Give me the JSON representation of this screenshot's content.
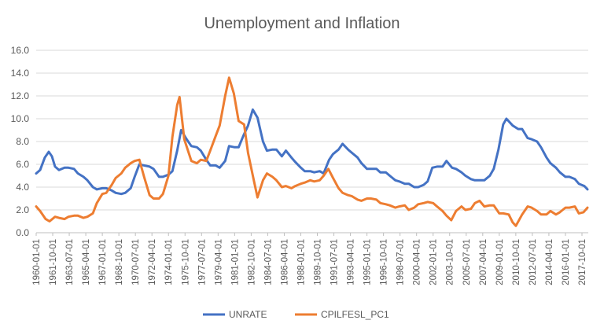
{
  "chart_data": {
    "type": "line",
    "title": "Unemployment and Inflation",
    "xlabel": "",
    "ylabel": "",
    "ylim": [
      0,
      16
    ],
    "yticks": [
      "0.0",
      "2.0",
      "4.0",
      "6.0",
      "8.0",
      "10.0",
      "12.0",
      "14.0",
      "16.0"
    ],
    "xticks": [
      "1960-01-01",
      "1961-10-01",
      "1963-07-01",
      "1965-04-01",
      "1967-01-01",
      "1968-10-01",
      "1970-07-01",
      "1972-04-01",
      "1974-01-01",
      "1975-10-01",
      "1977-07-01",
      "1979-04-01",
      "1981-01-01",
      "1982-10-01",
      "1984-07-01",
      "1986-04-01",
      "1988-01-01",
      "1989-10-01",
      "1991-07-01",
      "1993-04-01",
      "1995-01-01",
      "1996-10-01",
      "1998-07-01",
      "2000-04-01",
      "2002-01-01",
      "2003-10-01",
      "2005-07-01",
      "2007-04-01",
      "2009-01-01",
      "2010-10-01",
      "2012-07-01",
      "2014-04-01",
      "2016-01-01",
      "2017-10-01"
    ],
    "x_range": [
      "1960-01-01",
      "2018-06-01"
    ],
    "grid": true,
    "legend_position": "bottom",
    "series": [
      {
        "name": "UNRATE",
        "color": "#4472c4",
        "points": [
          [
            "1960-01",
            5.2
          ],
          [
            "1960-06",
            5.5
          ],
          [
            "1960-12",
            6.6
          ],
          [
            "1961-05",
            7.1
          ],
          [
            "1961-09",
            6.7
          ],
          [
            "1962-01",
            5.8
          ],
          [
            "1962-06",
            5.5
          ],
          [
            "1963-01",
            5.7
          ],
          [
            "1963-06",
            5.7
          ],
          [
            "1964-01",
            5.6
          ],
          [
            "1964-06",
            5.2
          ],
          [
            "1965-01",
            4.9
          ],
          [
            "1965-06",
            4.6
          ],
          [
            "1966-01",
            4.0
          ],
          [
            "1966-06",
            3.8
          ],
          [
            "1967-01",
            3.9
          ],
          [
            "1967-06",
            3.9
          ],
          [
            "1968-01",
            3.7
          ],
          [
            "1968-06",
            3.5
          ],
          [
            "1969-01",
            3.4
          ],
          [
            "1969-06",
            3.5
          ],
          [
            "1970-01",
            3.9
          ],
          [
            "1970-06",
            4.9
          ],
          [
            "1970-12",
            6.0
          ],
          [
            "1971-06",
            5.9
          ],
          [
            "1972-01",
            5.8
          ],
          [
            "1972-06",
            5.6
          ],
          [
            "1973-01",
            4.9
          ],
          [
            "1973-06",
            4.9
          ],
          [
            "1974-01",
            5.1
          ],
          [
            "1974-06",
            5.4
          ],
          [
            "1974-12",
            7.2
          ],
          [
            "1975-05",
            9.0
          ],
          [
            "1975-12",
            8.2
          ],
          [
            "1976-06",
            7.6
          ],
          [
            "1977-01",
            7.5
          ],
          [
            "1977-06",
            7.2
          ],
          [
            "1978-01",
            6.4
          ],
          [
            "1978-06",
            5.9
          ],
          [
            "1979-01",
            5.9
          ],
          [
            "1979-06",
            5.7
          ],
          [
            "1980-01",
            6.3
          ],
          [
            "1980-06",
            7.6
          ],
          [
            "1981-01",
            7.5
          ],
          [
            "1981-06",
            7.5
          ],
          [
            "1981-12",
            8.5
          ],
          [
            "1982-06",
            9.4
          ],
          [
            "1982-12",
            10.8
          ],
          [
            "1983-06",
            10.1
          ],
          [
            "1984-01",
            8.0
          ],
          [
            "1984-06",
            7.2
          ],
          [
            "1985-01",
            7.3
          ],
          [
            "1985-06",
            7.3
          ],
          [
            "1986-01",
            6.7
          ],
          [
            "1986-06",
            7.2
          ],
          [
            "1987-01",
            6.6
          ],
          [
            "1987-06",
            6.2
          ],
          [
            "1988-01",
            5.7
          ],
          [
            "1988-06",
            5.4
          ],
          [
            "1989-01",
            5.4
          ],
          [
            "1989-06",
            5.3
          ],
          [
            "1990-01",
            5.4
          ],
          [
            "1990-06",
            5.2
          ],
          [
            "1991-01",
            6.4
          ],
          [
            "1991-06",
            6.9
          ],
          [
            "1992-01",
            7.3
          ],
          [
            "1992-06",
            7.8
          ],
          [
            "1993-01",
            7.3
          ],
          [
            "1993-06",
            7.0
          ],
          [
            "1994-01",
            6.6
          ],
          [
            "1994-06",
            6.1
          ],
          [
            "1995-01",
            5.6
          ],
          [
            "1995-06",
            5.6
          ],
          [
            "1996-01",
            5.6
          ],
          [
            "1996-06",
            5.3
          ],
          [
            "1997-01",
            5.3
          ],
          [
            "1997-06",
            5.0
          ],
          [
            "1998-01",
            4.6
          ],
          [
            "1998-06",
            4.5
          ],
          [
            "1999-01",
            4.3
          ],
          [
            "1999-06",
            4.3
          ],
          [
            "2000-01",
            4.0
          ],
          [
            "2000-06",
            4.0
          ],
          [
            "2001-01",
            4.2
          ],
          [
            "2001-06",
            4.5
          ],
          [
            "2001-12",
            5.7
          ],
          [
            "2002-06",
            5.8
          ],
          [
            "2003-01",
            5.8
          ],
          [
            "2003-06",
            6.3
          ],
          [
            "2004-01",
            5.7
          ],
          [
            "2004-06",
            5.6
          ],
          [
            "2005-01",
            5.3
          ],
          [
            "2005-06",
            5.0
          ],
          [
            "2006-01",
            4.7
          ],
          [
            "2006-06",
            4.6
          ],
          [
            "2007-01",
            4.6
          ],
          [
            "2007-06",
            4.6
          ],
          [
            "2008-01",
            5.0
          ],
          [
            "2008-06",
            5.6
          ],
          [
            "2008-12",
            7.3
          ],
          [
            "2009-06",
            9.5
          ],
          [
            "2009-10",
            10.0
          ],
          [
            "2010-06",
            9.4
          ],
          [
            "2011-01",
            9.1
          ],
          [
            "2011-06",
            9.1
          ],
          [
            "2012-01",
            8.3
          ],
          [
            "2012-06",
            8.2
          ],
          [
            "2013-01",
            8.0
          ],
          [
            "2013-06",
            7.5
          ],
          [
            "2014-01",
            6.6
          ],
          [
            "2014-06",
            6.1
          ],
          [
            "2015-01",
            5.7
          ],
          [
            "2015-06",
            5.3
          ],
          [
            "2016-01",
            4.9
          ],
          [
            "2016-06",
            4.9
          ],
          [
            "2017-01",
            4.7
          ],
          [
            "2017-06",
            4.3
          ],
          [
            "2018-01",
            4.1
          ],
          [
            "2018-05",
            3.8
          ]
        ]
      },
      {
        "name": "CPILFESL_PC1",
        "color": "#ed7d31",
        "points": [
          [
            "1960-01",
            2.3
          ],
          [
            "1960-06",
            1.9
          ],
          [
            "1961-01",
            1.2
          ],
          [
            "1961-06",
            1.0
          ],
          [
            "1962-01",
            1.4
          ],
          [
            "1962-06",
            1.3
          ],
          [
            "1963-01",
            1.2
          ],
          [
            "1963-06",
            1.4
          ],
          [
            "1964-01",
            1.5
          ],
          [
            "1964-06",
            1.5
          ],
          [
            "1965-01",
            1.3
          ],
          [
            "1965-06",
            1.4
          ],
          [
            "1966-01",
            1.7
          ],
          [
            "1966-06",
            2.6
          ],
          [
            "1967-01",
            3.4
          ],
          [
            "1967-06",
            3.5
          ],
          [
            "1968-01",
            4.2
          ],
          [
            "1968-06",
            4.8
          ],
          [
            "1969-01",
            5.2
          ],
          [
            "1969-06",
            5.7
          ],
          [
            "1970-01",
            6.1
          ],
          [
            "1970-06",
            6.3
          ],
          [
            "1970-12",
            6.4
          ],
          [
            "1971-06",
            4.9
          ],
          [
            "1972-01",
            3.3
          ],
          [
            "1972-06",
            3.0
          ],
          [
            "1973-01",
            3.0
          ],
          [
            "1973-06",
            3.4
          ],
          [
            "1974-01",
            5.0
          ],
          [
            "1974-06",
            8.4
          ],
          [
            "1974-12",
            11.2
          ],
          [
            "1975-03",
            11.9
          ],
          [
            "1975-09",
            8.2
          ],
          [
            "1976-06",
            6.3
          ],
          [
            "1977-01",
            6.1
          ],
          [
            "1977-06",
            6.4
          ],
          [
            "1978-01",
            6.3
          ],
          [
            "1978-06",
            7.2
          ],
          [
            "1979-01",
            8.5
          ],
          [
            "1979-06",
            9.4
          ],
          [
            "1980-01",
            12.0
          ],
          [
            "1980-06",
            13.6
          ],
          [
            "1980-12",
            12.2
          ],
          [
            "1981-06",
            9.8
          ],
          [
            "1982-01",
            9.5
          ],
          [
            "1982-06",
            7.0
          ],
          [
            "1983-01",
            4.7
          ],
          [
            "1983-06",
            3.1
          ],
          [
            "1984-01",
            4.6
          ],
          [
            "1984-06",
            5.2
          ],
          [
            "1985-01",
            4.9
          ],
          [
            "1985-06",
            4.6
          ],
          [
            "1986-01",
            4.0
          ],
          [
            "1986-06",
            4.1
          ],
          [
            "1987-01",
            3.9
          ],
          [
            "1987-06",
            4.1
          ],
          [
            "1988-01",
            4.3
          ],
          [
            "1988-06",
            4.4
          ],
          [
            "1989-01",
            4.6
          ],
          [
            "1989-06",
            4.5
          ],
          [
            "1990-01",
            4.6
          ],
          [
            "1990-06",
            5.0
          ],
          [
            "1990-12",
            5.6
          ],
          [
            "1991-06",
            4.8
          ],
          [
            "1992-01",
            3.9
          ],
          [
            "1992-06",
            3.5
          ],
          [
            "1993-01",
            3.3
          ],
          [
            "1993-06",
            3.2
          ],
          [
            "1994-01",
            2.9
          ],
          [
            "1994-06",
            2.8
          ],
          [
            "1995-01",
            3.0
          ],
          [
            "1995-06",
            3.0
          ],
          [
            "1996-01",
            2.9
          ],
          [
            "1996-06",
            2.6
          ],
          [
            "1997-01",
            2.5
          ],
          [
            "1997-06",
            2.4
          ],
          [
            "1998-01",
            2.2
          ],
          [
            "1998-06",
            2.3
          ],
          [
            "1999-01",
            2.4
          ],
          [
            "1999-06",
            2.0
          ],
          [
            "2000-01",
            2.2
          ],
          [
            "2000-06",
            2.5
          ],
          [
            "2001-01",
            2.6
          ],
          [
            "2001-06",
            2.7
          ],
          [
            "2002-01",
            2.6
          ],
          [
            "2002-06",
            2.3
          ],
          [
            "2003-01",
            1.9
          ],
          [
            "2003-06",
            1.5
          ],
          [
            "2003-12",
            1.1
          ],
          [
            "2004-06",
            1.9
          ],
          [
            "2005-01",
            2.3
          ],
          [
            "2005-06",
            2.0
          ],
          [
            "2006-01",
            2.1
          ],
          [
            "2006-06",
            2.6
          ],
          [
            "2006-12",
            2.8
          ],
          [
            "2007-06",
            2.3
          ],
          [
            "2008-01",
            2.4
          ],
          [
            "2008-06",
            2.4
          ],
          [
            "2009-01",
            1.7
          ],
          [
            "2009-06",
            1.7
          ],
          [
            "2010-01",
            1.6
          ],
          [
            "2010-06",
            0.9
          ],
          [
            "2010-10",
            0.6
          ],
          [
            "2011-06",
            1.6
          ],
          [
            "2012-01",
            2.3
          ],
          [
            "2012-06",
            2.2
          ],
          [
            "2013-01",
            1.9
          ],
          [
            "2013-06",
            1.6
          ],
          [
            "2014-01",
            1.6
          ],
          [
            "2014-06",
            1.9
          ],
          [
            "2015-01",
            1.6
          ],
          [
            "2015-06",
            1.8
          ],
          [
            "2016-01",
            2.2
          ],
          [
            "2016-06",
            2.2
          ],
          [
            "2017-01",
            2.3
          ],
          [
            "2017-06",
            1.7
          ],
          [
            "2017-12",
            1.8
          ],
          [
            "2018-05",
            2.2
          ]
        ]
      }
    ]
  }
}
